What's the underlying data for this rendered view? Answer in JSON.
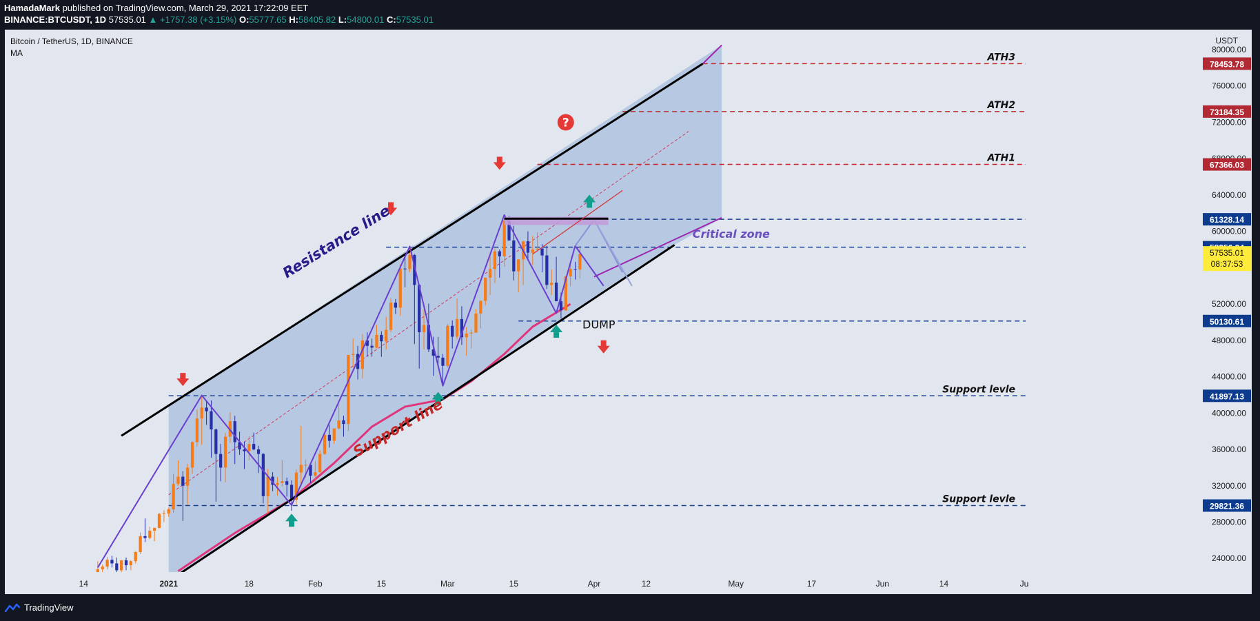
{
  "header": {
    "author": "HamadaMark",
    "published": "published on TradingView.com, March 29, 2021 17:22:09 EET",
    "symbol_line": "BINANCE:BTCUSDT, 1D",
    "last": "57535.01",
    "change": "▲ +1757.38 (+3.15%)",
    "o_label": "O:",
    "o": "55777.65",
    "h_label": "H:",
    "h": "58405.82",
    "l_label": "L:",
    "l": "54800.01",
    "c_label": "C:",
    "c": "57535.01"
  },
  "footer": {
    "brand": "TradingView"
  },
  "chart_data": {
    "type": "candlestick",
    "legend_title": "Bitcoin / TetherUS, 1D, BINANCE",
    "indicator": "MA",
    "currency": "USDT",
    "ylim": [
      22500,
      82200
    ],
    "x_domain": [
      "2020-12-09",
      "2021-07-01"
    ],
    "y_ticks": [
      24000,
      28000,
      32000,
      36000,
      40000,
      44000,
      48000,
      52000,
      56000,
      60000,
      64000,
      68000,
      72000,
      76000,
      80000
    ],
    "y_tick_labels": [
      "24000.00",
      "28000.00",
      "32000.00",
      "36000.00",
      "40000.00",
      "44000.00",
      "48000.00",
      "52000.00",
      "56000.00",
      "60000.00",
      "64000.00",
      "68000.00",
      "72000.00",
      "76000.00",
      "80000.00"
    ],
    "x_ticks": [
      {
        "label": "14",
        "date": "2020-12-14",
        "bold": false
      },
      {
        "label": "2021",
        "date": "2021-01-01",
        "bold": true
      },
      {
        "label": "18",
        "date": "2021-01-18",
        "bold": false
      },
      {
        "label": "Feb",
        "date": "2021-02-01",
        "bold": false
      },
      {
        "label": "15",
        "date": "2021-02-15",
        "bold": false
      },
      {
        "label": "Mar",
        "date": "2021-03-01",
        "bold": false
      },
      {
        "label": "15",
        "date": "2021-03-15",
        "bold": false
      },
      {
        "label": "Apr",
        "date": "2021-04-01",
        "bold": false
      },
      {
        "label": "12",
        "date": "2021-04-12",
        "bold": false
      },
      {
        "label": "May",
        "date": "2021-05-01",
        "bold": false
      },
      {
        "label": "17",
        "date": "2021-05-17",
        "bold": false
      },
      {
        "label": "Jun",
        "date": "2021-06-01",
        "bold": false
      },
      {
        "label": "14",
        "date": "2021-06-14",
        "bold": false
      },
      {
        "label": "Ju",
        "date": "2021-07-01",
        "bold": false
      }
    ],
    "price_levels": [
      {
        "value": 78453.78,
        "label": "78453.78",
        "tag": "ATH3",
        "color": "#b22833",
        "line_color": "#c62828",
        "start_date": "2021-04-24"
      },
      {
        "value": 73184.35,
        "label": "73184.35",
        "tag": "ATH2",
        "color": "#b22833",
        "line_color": "#c62828",
        "start_date": "2021-04-07"
      },
      {
        "value": 67366.03,
        "label": "67366.03",
        "tag": "ATH1",
        "color": "#b22833",
        "line_color": "#c62828",
        "start_date": "2021-03-20"
      },
      {
        "value": 61328.14,
        "label": "61328.14",
        "tag": "",
        "color": "#0d3c8f",
        "line_color": "#1a3f8f",
        "start_date": "2021-03-13"
      },
      {
        "value": 58256.34,
        "label": "58256.34",
        "tag": "",
        "color": "#0d3c8f",
        "line_color": "#1a3f8f",
        "start_date": "2021-02-16"
      },
      {
        "value": 50130.61,
        "label": "50130.61",
        "tag": "",
        "color": "#0d3c8f",
        "line_color": "#1a3f8f",
        "start_date": "2021-03-16"
      },
      {
        "value": 41897.13,
        "label": "41897.13",
        "tag": "Support levle",
        "color": "#0d3c8f",
        "line_color": "#1a3f8f",
        "start_date": "2021-01-01"
      },
      {
        "value": 29821.36,
        "label": "29821.36",
        "tag": "Support levle",
        "color": "#0d3c8f",
        "line_color": "#1a3f8f",
        "start_date": "2021-01-01"
      }
    ],
    "current_price": {
      "value": 57535.01,
      "label": "57535.01",
      "countdown": "08:37:53",
      "color": "#ffeb3b"
    },
    "channel": {
      "fill": "#b4c6e2",
      "resistance": [
        [
          "2020-12-22",
          37500
        ],
        [
          "2021-04-24",
          78453.78
        ]
      ],
      "support": [
        [
          "2021-01-03",
          22200
        ],
        [
          "2021-04-18",
          58500
        ]
      ],
      "mid": [
        [
          "2021-01-01",
          31000
        ],
        [
          "2021-04-21",
          71000
        ]
      ],
      "box": {
        "start": "2021-01-01",
        "end": "2021-04-28"
      },
      "outer_resistance": [
        [
          "2021-04-24",
          78453.78
        ],
        [
          "2021-04-28",
          80500
        ]
      ],
      "outer_support": [
        [
          "2021-04-01",
          55000
        ],
        [
          "2021-04-28",
          61500
        ]
      ]
    },
    "labels": [
      {
        "text": "Resistance line",
        "color": "#2a1b8a",
        "date": "2021-02-06",
        "value": 58400,
        "angle": -32
      },
      {
        "text": "Support line",
        "color": "#c62828",
        "date": "2021-02-19",
        "value": 37900,
        "angle": -30
      },
      {
        "text": "Critical zone",
        "color": "#6a4fc1",
        "date": "2021-04-30",
        "value": 59300,
        "angle": 0
      },
      {
        "text": "DUMP",
        "color": "#111111",
        "date": "2021-04-02",
        "value": 49300,
        "angle": 0
      }
    ],
    "question_mark": {
      "text": "?",
      "date": "2021-03-26",
      "value": 72000
    },
    "arrows_down": [
      [
        "2021-01-04",
        43500
      ],
      [
        "2021-02-17",
        62300
      ],
      [
        "2021-03-12",
        67300
      ],
      [
        "2021-04-03",
        47100
      ]
    ],
    "arrows_up": [
      [
        "2021-01-27",
        28400
      ],
      [
        "2021-02-27",
        41800
      ],
      [
        "2021-03-24",
        49200
      ],
      [
        "2021-03-31",
        63500
      ]
    ],
    "zigzag": [
      [
        "2020-12-17",
        23000
      ],
      [
        "2021-01-08",
        41950
      ],
      [
        "2021-01-27",
        29850
      ],
      [
        "2021-02-21",
        58350
      ],
      [
        "2021-02-28",
        43000
      ],
      [
        "2021-03-13",
        61800
      ],
      [
        "2021-03-24",
        51000
      ],
      [
        "2021-03-28",
        58400
      ],
      [
        "2021-04-03",
        54000
      ]
    ],
    "projection": [
      [
        "2021-03-28",
        58400
      ],
      [
        "2021-04-01",
        61300
      ],
      [
        "2021-04-07",
        55500
      ]
    ],
    "critical_rect": {
      "start": "2021-03-13",
      "end": "2021-04-04",
      "low": 60700,
      "high": 61600
    },
    "red_trend": [
      [
        "2021-03-19",
        57500
      ],
      [
        "2021-04-07",
        64500
      ]
    ],
    "black_hline": {
      "start": "2021-03-13",
      "end": "2021-04-04",
      "value": 61400
    },
    "ma_line": [
      [
        "2021-01-03",
        22600
      ],
      [
        "2021-01-15",
        26800
      ],
      [
        "2021-01-27",
        30500
      ],
      [
        "2021-02-05",
        34500
      ],
      [
        "2021-02-13",
        38500
      ],
      [
        "2021-02-20",
        40700
      ],
      [
        "2021-02-28",
        41500
      ],
      [
        "2021-03-06",
        43500
      ],
      [
        "2021-03-13",
        46500
      ],
      [
        "2021-03-19",
        49500
      ],
      [
        "2021-03-27",
        52000
      ]
    ],
    "candles_ohlc": [
      [
        "2020-12-14",
        19150,
        19400,
        19050,
        19280
      ],
      [
        "2020-12-15",
        19280,
        19550,
        19050,
        19440
      ],
      [
        "2020-12-16",
        19440,
        21500,
        19300,
        21350
      ],
      [
        "2020-12-17",
        21350,
        23700,
        21200,
        22800
      ],
      [
        "2020-12-18",
        22800,
        23300,
        22350,
        23100
      ],
      [
        "2020-12-19",
        23100,
        24150,
        22800,
        23850
      ],
      [
        "2020-12-20",
        23850,
        24300,
        23000,
        23450
      ],
      [
        "2020-12-21",
        23450,
        24100,
        22200,
        22700
      ],
      [
        "2020-12-22",
        22700,
        23800,
        22400,
        23800
      ],
      [
        "2020-12-23",
        23800,
        24100,
        22700,
        23250
      ],
      [
        "2020-12-24",
        23250,
        23800,
        22700,
        23700
      ],
      [
        "2020-12-25",
        23700,
        24800,
        23450,
        24700
      ],
      [
        "2020-12-26",
        24700,
        26850,
        24500,
        26450
      ],
      [
        "2020-12-27",
        26450,
        28400,
        25800,
        26250
      ],
      [
        "2020-12-28",
        26250,
        27500,
        26100,
        27050
      ],
      [
        "2020-12-29",
        27050,
        27400,
        25900,
        27350
      ],
      [
        "2020-12-30",
        27350,
        28999,
        27300,
        28900
      ],
      [
        "2020-12-31",
        28900,
        29300,
        28000,
        28950
      ],
      [
        "2021-01-01",
        28950,
        29600,
        28600,
        29400
      ],
      [
        "2021-01-02",
        29400,
        33300,
        29000,
        32200
      ],
      [
        "2021-01-03",
        32200,
        34800,
        32000,
        33000
      ],
      [
        "2021-01-04",
        33000,
        33600,
        28130,
        32000
      ],
      [
        "2021-01-05",
        32000,
        34400,
        29900,
        34000
      ],
      [
        "2021-01-06",
        34000,
        36900,
        33300,
        36800
      ],
      [
        "2021-01-07",
        36800,
        40400,
        36300,
        39400
      ],
      [
        "2021-01-08",
        39400,
        41950,
        36500,
        40600
      ],
      [
        "2021-01-09",
        40600,
        41400,
        38700,
        40200
      ],
      [
        "2021-01-10",
        40200,
        41400,
        35100,
        38200
      ],
      [
        "2021-01-11",
        38200,
        38300,
        30250,
        35500
      ],
      [
        "2021-01-12",
        35500,
        36600,
        32500,
        34000
      ],
      [
        "2021-01-13",
        34000,
        37800,
        32400,
        37400
      ],
      [
        "2021-01-14",
        37400,
        40100,
        36700,
        39100
      ],
      [
        "2021-01-15",
        39100,
        39700,
        34400,
        36800
      ],
      [
        "2021-01-16",
        36800,
        37950,
        35400,
        36000
      ],
      [
        "2021-01-17",
        36000,
        36850,
        33850,
        35800
      ],
      [
        "2021-01-18",
        35800,
        37450,
        34800,
        36600
      ],
      [
        "2021-01-19",
        36600,
        37850,
        35900,
        36000
      ],
      [
        "2021-01-20",
        36000,
        36400,
        33400,
        35500
      ],
      [
        "2021-01-21",
        35500,
        35600,
        30050,
        30850
      ],
      [
        "2021-01-22",
        30850,
        33850,
        28850,
        33000
      ],
      [
        "2021-01-23",
        33000,
        33500,
        31400,
        32100
      ],
      [
        "2021-01-24",
        32100,
        32950,
        30900,
        32300
      ],
      [
        "2021-01-25",
        32300,
        34850,
        31900,
        32500
      ],
      [
        "2021-01-26",
        32500,
        32900,
        30800,
        32100
      ],
      [
        "2021-01-27",
        32100,
        32600,
        29250,
        30450
      ],
      [
        "2021-01-28",
        30450,
        33800,
        29900,
        33450
      ],
      [
        "2021-01-29",
        33450,
        38600,
        31900,
        34300
      ],
      [
        "2021-01-30",
        34300,
        34900,
        32900,
        34300
      ],
      [
        "2021-01-31",
        34300,
        34350,
        32300,
        33100
      ],
      [
        "2021-02-01",
        33100,
        34700,
        32300,
        33500
      ],
      [
        "2021-02-02",
        33500,
        35900,
        33400,
        35500
      ],
      [
        "2021-02-03",
        35500,
        37700,
        35400,
        37600
      ],
      [
        "2021-02-04",
        37600,
        38700,
        36200,
        36950
      ],
      [
        "2021-02-05",
        36950,
        38300,
        36600,
        38300
      ],
      [
        "2021-02-06",
        38300,
        40950,
        38200,
        39200
      ],
      [
        "2021-02-07",
        39200,
        39700,
        37400,
        38800
      ],
      [
        "2021-02-08",
        38800,
        46300,
        38000,
        46400
      ],
      [
        "2021-02-09",
        46400,
        48200,
        45000,
        46500
      ],
      [
        "2021-02-10",
        46500,
        47400,
        43700,
        44850
      ],
      [
        "2021-02-11",
        44850,
        48700,
        43800,
        48000
      ],
      [
        "2021-02-12",
        48000,
        48900,
        46200,
        47400
      ],
      [
        "2021-02-13",
        47400,
        48200,
        46200,
        47200
      ],
      [
        "2021-02-14",
        47200,
        49700,
        47100,
        48600
      ],
      [
        "2021-02-15",
        48600,
        49000,
        46200,
        47900
      ],
      [
        "2021-02-16",
        47900,
        50600,
        47000,
        49150
      ],
      [
        "2021-02-17",
        49150,
        52600,
        48900,
        52150
      ],
      [
        "2021-02-18",
        52150,
        52550,
        50900,
        51600
      ],
      [
        "2021-02-19",
        51600,
        56350,
        50700,
        55900
      ],
      [
        "2021-02-20",
        55900,
        57600,
        53850,
        55850
      ],
      [
        "2021-02-21",
        55850,
        58350,
        55500,
        57400
      ],
      [
        "2021-02-22",
        57400,
        57500,
        47600,
        54100
      ],
      [
        "2021-02-23",
        54100,
        54200,
        44900,
        48900
      ],
      [
        "2021-02-24",
        48900,
        51400,
        47000,
        49700
      ],
      [
        "2021-02-25",
        49700,
        52050,
        46700,
        47000
      ],
      [
        "2021-02-26",
        47000,
        48400,
        44100,
        46300
      ],
      [
        "2021-02-27",
        46300,
        48400,
        45100,
        46100
      ],
      [
        "2021-02-28",
        46100,
        46500,
        43000,
        45200
      ],
      [
        "2021-03-01",
        45200,
        49800,
        45000,
        49600
      ],
      [
        "2021-03-02",
        49600,
        50200,
        47100,
        48400
      ],
      [
        "2021-03-03",
        48400,
        52600,
        48100,
        50350
      ],
      [
        "2021-03-04",
        50350,
        51750,
        47500,
        48350
      ],
      [
        "2021-03-05",
        48350,
        49450,
        46300,
        48750
      ],
      [
        "2021-03-06",
        48750,
        49200,
        47100,
        48850
      ],
      [
        "2021-03-07",
        48850,
        51450,
        48850,
        50950
      ],
      [
        "2021-03-08",
        50950,
        52400,
        49300,
        52350
      ],
      [
        "2021-03-09",
        52350,
        54900,
        51850,
        54900
      ],
      [
        "2021-03-10",
        54900,
        57400,
        53000,
        55850
      ],
      [
        "2021-03-11",
        55850,
        58100,
        54300,
        57800
      ],
      [
        "2021-03-12",
        57800,
        58000,
        54900,
        57250
      ],
      [
        "2021-03-13",
        57250,
        61800,
        56100,
        61200
      ],
      [
        "2021-03-14",
        61200,
        61700,
        59000,
        59000
      ],
      [
        "2021-03-15",
        59000,
        60600,
        54600,
        55600
      ],
      [
        "2021-03-16",
        55600,
        56950,
        53300,
        56900
      ],
      [
        "2021-03-17",
        56900,
        58950,
        54100,
        58900
      ],
      [
        "2021-03-18",
        58900,
        60000,
        56800,
        57650
      ],
      [
        "2021-03-19",
        57650,
        59500,
        56300,
        58000
      ],
      [
        "2021-03-20",
        58000,
        59900,
        57800,
        58100
      ],
      [
        "2021-03-21",
        58100,
        58600,
        55500,
        57350
      ],
      [
        "2021-03-22",
        57350,
        58400,
        53650,
        54100
      ],
      [
        "2021-03-23",
        54100,
        55800,
        53000,
        54350
      ],
      [
        "2021-03-24",
        54350,
        57200,
        52900,
        52300
      ],
      [
        "2021-03-25",
        52300,
        53250,
        50400,
        51300
      ],
      [
        "2021-03-26",
        51300,
        55100,
        51250,
        55050
      ],
      [
        "2021-03-27",
        55050,
        56600,
        53950,
        55850
      ],
      [
        "2021-03-28",
        55850,
        56650,
        54700,
        55800
      ],
      [
        "2021-03-29",
        55800,
        58400,
        54800,
        57535
      ]
    ]
  }
}
